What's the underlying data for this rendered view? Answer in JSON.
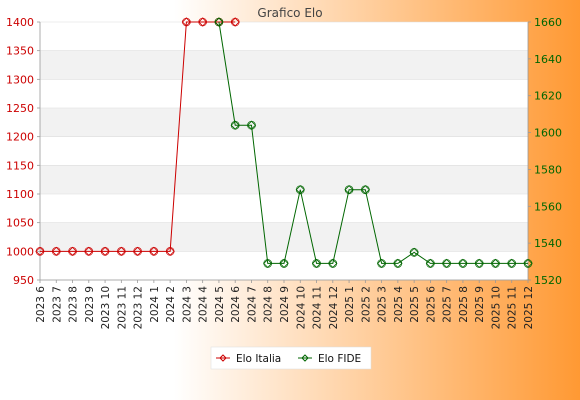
{
  "chart_data": {
    "type": "line",
    "title": "Grafico Elo",
    "categories": [
      "2023 6",
      "2023 7",
      "2023 8",
      "2023 9",
      "2023 10",
      "2023 11",
      "2023 12",
      "2024 1",
      "2024 2",
      "2024 3",
      "2024 4",
      "2024 5",
      "2024 6",
      "2024 7",
      "2024 8",
      "2024 9",
      "2024 10",
      "2024 11",
      "2024 12",
      "2025 1",
      "2025 2",
      "2025 3",
      "2025 4",
      "2025 5",
      "2025 6",
      "2025 7",
      "2025 8",
      "2025 9",
      "2025 10",
      "2025 11",
      "2025 12"
    ],
    "y_left": {
      "min": 950,
      "max": 1400,
      "ticks": [
        950,
        1000,
        1050,
        1100,
        1150,
        1200,
        1250,
        1300,
        1350,
        1400
      ]
    },
    "y_right": {
      "min": 1520,
      "max": 1660,
      "ticks": [
        1520,
        1540,
        1560,
        1580,
        1600,
        1620,
        1640,
        1660
      ]
    },
    "series": [
      {
        "name": "Elo Italia",
        "axis": "left",
        "color": "#cc0000",
        "values": [
          1000,
          1000,
          1000,
          1000,
          1000,
          1000,
          1000,
          1000,
          1000,
          1400,
          1400,
          1400,
          1400,
          null,
          null,
          null,
          null,
          null,
          null,
          null,
          null,
          null,
          null,
          null,
          null,
          null,
          null,
          null,
          null,
          null,
          null
        ]
      },
      {
        "name": "Elo FIDE",
        "axis": "right",
        "color": "#006600",
        "values": [
          null,
          null,
          null,
          null,
          null,
          null,
          null,
          null,
          null,
          null,
          null,
          1660,
          1604,
          1604,
          1529,
          1529,
          1569,
          1529,
          1529,
          1569,
          1569,
          1529,
          1529,
          1535,
          1529,
          1529,
          1529,
          1529,
          1529,
          1529,
          1529
        ]
      }
    ],
    "grid": true,
    "legend": "bottom-center"
  },
  "colors": {
    "bg_left": "#ffffff",
    "bg_right": "#ff9933",
    "band_light": "#ffffff",
    "band_dark": "#f2f2f2",
    "grid_line": "#dddddd",
    "axis_left": "#cc0000",
    "axis_right": "#006600"
  }
}
